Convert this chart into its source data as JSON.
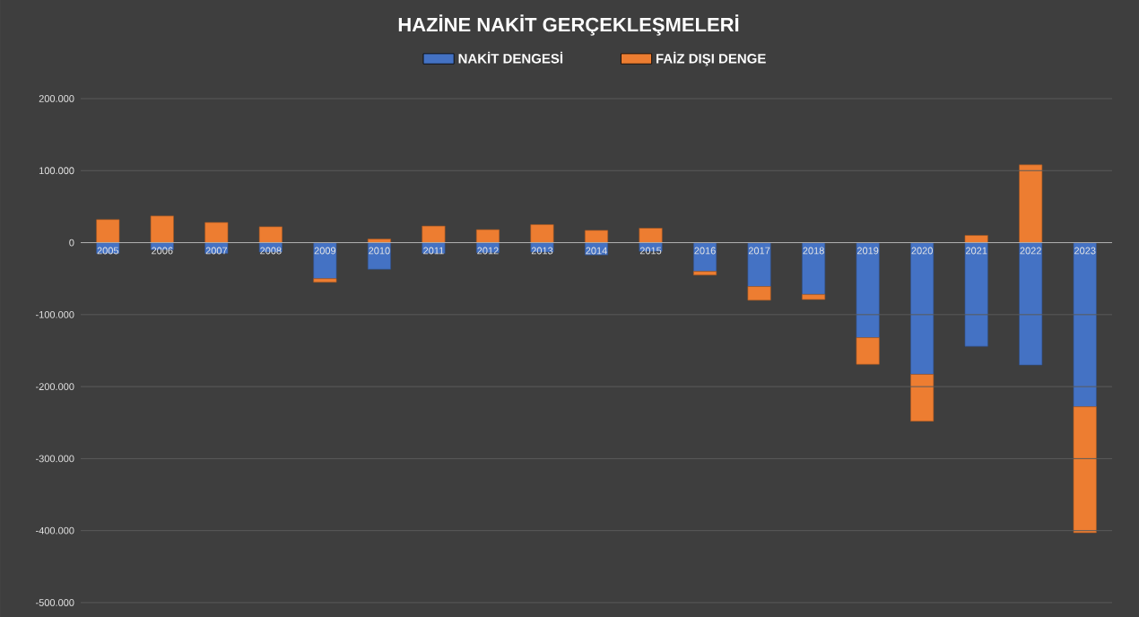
{
  "chart_data": {
    "type": "bar",
    "title": "HAZİNE NAKİT GERÇEKLEŞMELERİ",
    "stacked": true,
    "categories": [
      "2005",
      "2006",
      "2007",
      "2008",
      "2009",
      "2010",
      "2011",
      "2012",
      "2013",
      "2014",
      "2015",
      "2016",
      "2017",
      "2018",
      "2019",
      "2020",
      "2021",
      "2022",
      "2023"
    ],
    "series": [
      {
        "name": "NAKİT DENGESİ",
        "color": "#4472c4",
        "values": [
          -15000,
          -10000,
          -15000,
          -13000,
          -50000,
          -37000,
          -15000,
          -14000,
          -13000,
          -17000,
          -12000,
          -40000,
          -61000,
          -72000,
          -132000,
          -183000,
          -144000,
          -170000,
          -228000
        ]
      },
      {
        "name": "FAİZ DIŞI DENGE",
        "color": "#ed7d31",
        "values": [
          32000,
          37000,
          28000,
          22000,
          -5000,
          5000,
          23000,
          18000,
          25000,
          17000,
          20000,
          -5000,
          -19000,
          -7000,
          -37000,
          -65000,
          10000,
          108000,
          -175000
        ]
      }
    ],
    "ylim": [
      -500000,
      200000
    ],
    "yticks": [
      {
        "value": -500000,
        "label": "-500.000"
      },
      {
        "value": -400000,
        "label": "-400.000"
      },
      {
        "value": -300000,
        "label": "-300.000"
      },
      {
        "value": -200000,
        "label": "-200.000"
      },
      {
        "value": -100000,
        "label": "-100.000"
      },
      {
        "value": 0,
        "label": "0"
      },
      {
        "value": 100000,
        "label": "100.000"
      },
      {
        "value": 200000,
        "label": "200.000"
      }
    ],
    "grid": "y",
    "legend": "top"
  }
}
